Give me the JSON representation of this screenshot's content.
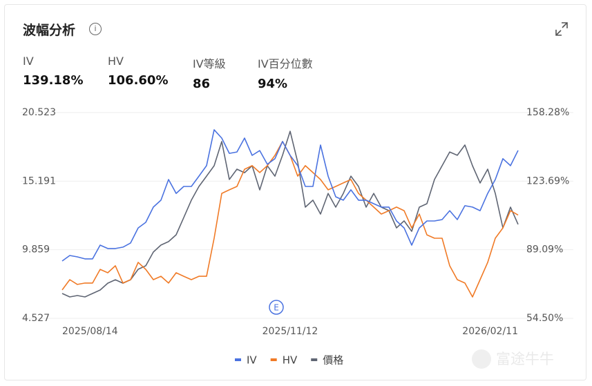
{
  "header": {
    "title": "波幅分析",
    "stats": [
      {
        "label": "IV",
        "value": "139.18%"
      },
      {
        "label": "HV",
        "value": "106.60%"
      },
      {
        "label": "IV等級",
        "value": "86"
      },
      {
        "label": "IV百分位數",
        "value": "94%"
      }
    ]
  },
  "watermark": "富途牛牛",
  "chart_data": {
    "type": "line",
    "grid": true,
    "legend": "bottom",
    "categories": [
      "2025/08/14",
      null,
      null,
      null,
      null,
      null,
      null,
      null,
      null,
      null,
      null,
      null,
      null,
      null,
      null,
      null,
      null,
      null,
      null,
      null,
      null,
      null,
      null,
      null,
      null,
      null,
      null,
      null,
      null,
      null,
      "2025/11/12",
      null,
      null,
      null,
      null,
      null,
      null,
      null,
      null,
      null,
      null,
      null,
      null,
      null,
      null,
      null,
      null,
      null,
      null,
      null,
      null,
      null,
      null,
      null,
      null,
      null,
      null,
      null,
      null,
      null,
      "2026/02/11"
    ],
    "ylim": [
      4.527,
      20.523
    ],
    "yticks": [
      4.527,
      9.859,
      15.191,
      20.523
    ],
    "y2lim": [
      54.5,
      158.28
    ],
    "y2ticks": [
      {
        "value": 54.5,
        "label": "54.50%"
      },
      {
        "value": 89.09,
        "label": "89.09%"
      },
      {
        "value": 123.69,
        "label": "123.69%"
      },
      {
        "value": 158.28,
        "label": "158.28%"
      }
    ],
    "annotations": [
      "E"
    ],
    "series": [
      {
        "name": "IV",
        "color": "#4a72e0",
        "axis": "y2",
        "values": [
          83.4,
          86.2,
          85.5,
          84.5,
          84.5,
          91.4,
          89.7,
          89.7,
          90.4,
          92.5,
          100.1,
          102.9,
          110.6,
          114.1,
          124.5,
          117.5,
          121.0,
          121.0,
          126.2,
          131.5,
          149.6,
          145.4,
          137.7,
          138.4,
          145.4,
          136.7,
          139.1,
          132.2,
          135.0,
          143.7,
          136.7,
          131.5,
          121.0,
          121.0,
          141.9,
          126.2,
          115.8,
          114.1,
          119.3,
          114.1,
          114.1,
          112.3,
          110.6,
          110.6,
          103.6,
          100.1,
          91.4,
          100.1,
          103.6,
          103.6,
          104.3,
          108.8,
          104.3,
          111.3,
          110.6,
          108.8,
          117.5,
          124.5,
          135.0,
          131.5,
          139.2
        ]
      },
      {
        "name": "HV",
        "color": "#f07a26",
        "axis": "y2",
        "values": [
          68.8,
          74.0,
          71.6,
          72.3,
          72.3,
          79.2,
          77.5,
          81.0,
          72.3,
          74.0,
          82.7,
          79.2,
          74.0,
          75.7,
          72.3,
          77.5,
          75.7,
          74.0,
          75.7,
          75.7,
          94.9,
          117.5,
          119.3,
          121.0,
          129.7,
          131.5,
          128.0,
          131.5,
          136.7,
          143.7,
          136.7,
          126.2,
          131.5,
          128.0,
          124.5,
          119.3,
          121.0,
          122.8,
          124.5,
          117.5,
          114.1,
          110.6,
          107.1,
          108.8,
          110.6,
          108.8,
          100.1,
          107.1,
          96.6,
          94.9,
          94.9,
          81.0,
          74.0,
          72.3,
          65.3,
          74.0,
          82.7,
          94.9,
          100.1,
          108.8,
          106.6
        ]
      },
      {
        "name": "價格",
        "color": "#5f6573",
        "axis": "y",
        "values": [
          6.46,
          6.19,
          6.3,
          6.19,
          6.46,
          6.73,
          7.26,
          7.53,
          7.26,
          7.53,
          8.34,
          8.61,
          9.68,
          10.22,
          10.49,
          11.02,
          12.36,
          13.71,
          14.78,
          15.58,
          16.39,
          18.27,
          15.32,
          16.12,
          15.85,
          16.39,
          14.51,
          16.39,
          15.58,
          17.2,
          19.07,
          16.66,
          13.17,
          13.71,
          12.63,
          14.24,
          13.17,
          14.24,
          15.58,
          14.78,
          13.17,
          14.24,
          13.17,
          12.9,
          11.56,
          12.1,
          11.29,
          13.17,
          13.44,
          15.32,
          16.39,
          17.46,
          17.2,
          18.0,
          16.39,
          15.05,
          16.12,
          14.24,
          11.56,
          13.17,
          11.83
        ]
      }
    ]
  }
}
